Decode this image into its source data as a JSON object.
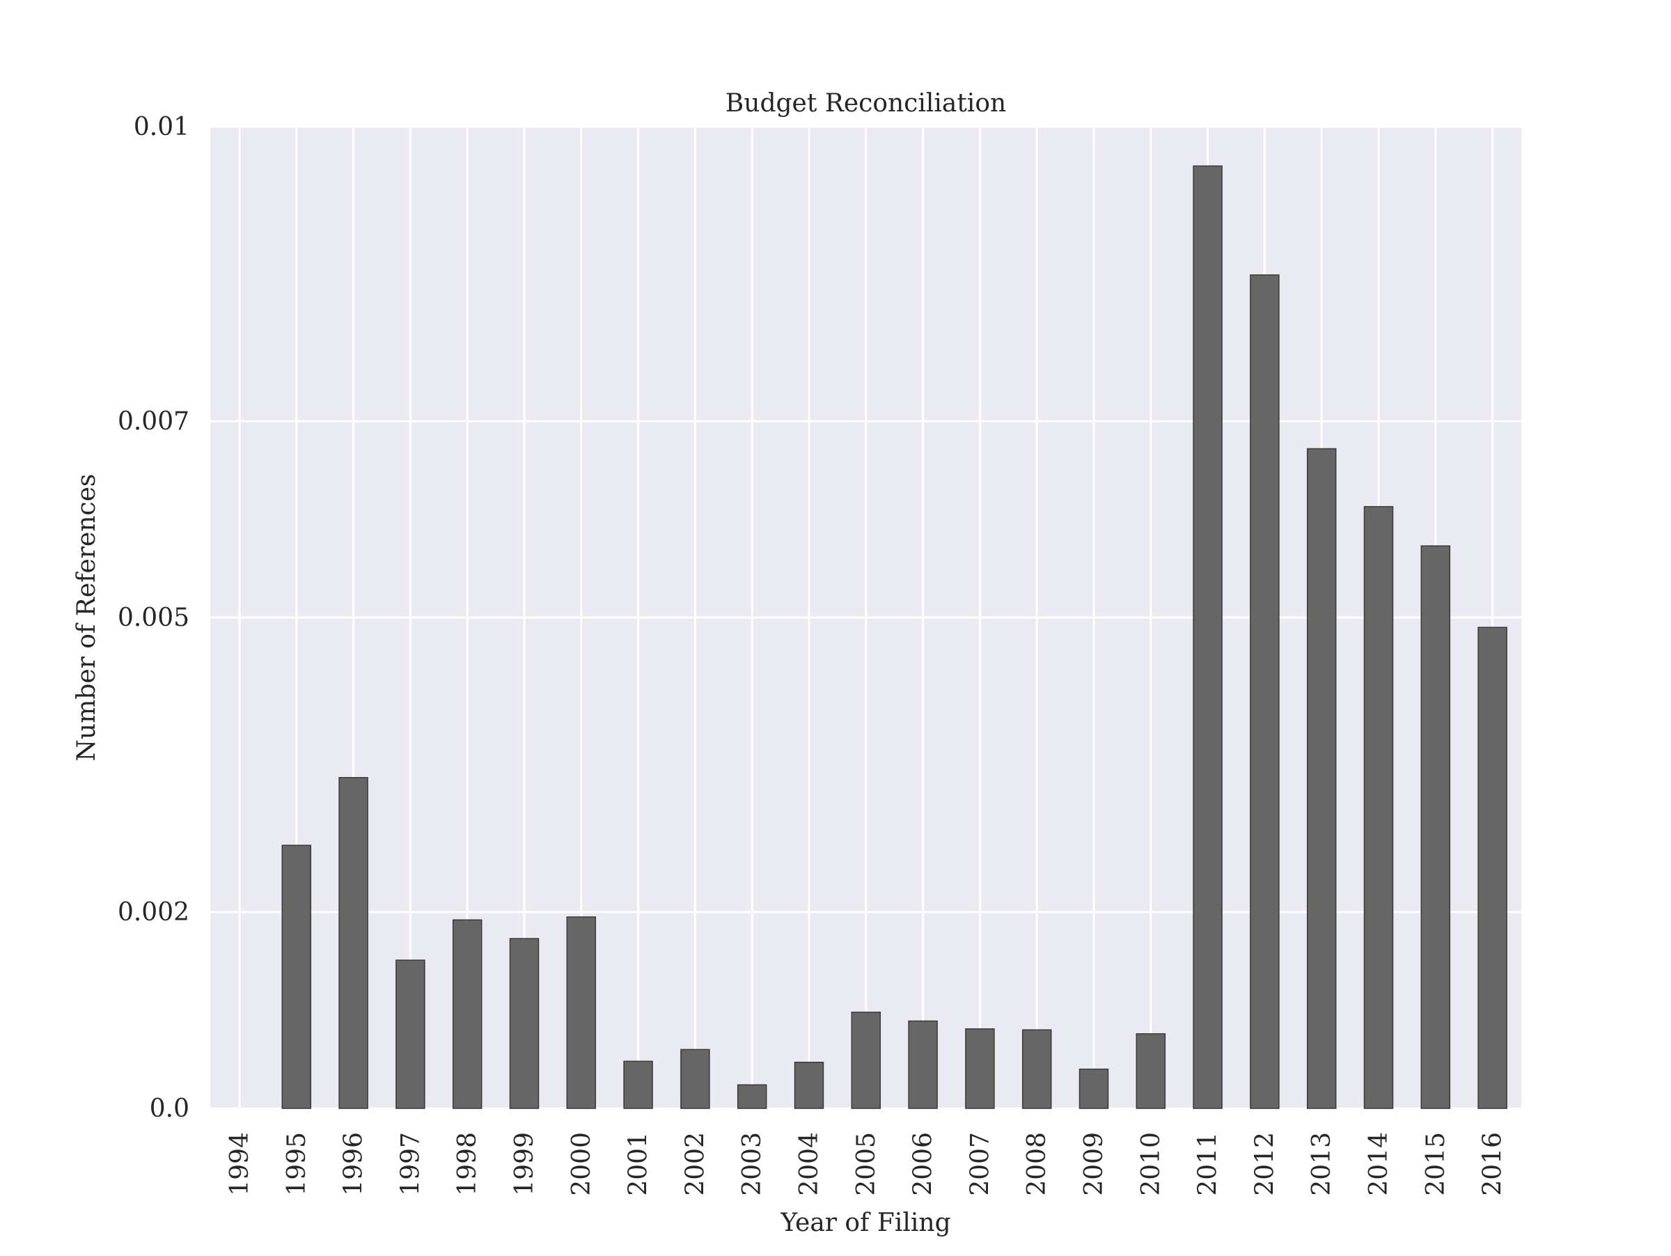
{
  "chart_data": {
    "type": "bar",
    "title": "Budget Reconciliation",
    "xlabel": "Year of Filing",
    "ylabel": "Number of References",
    "categories": [
      "1994",
      "1995",
      "1996",
      "1997",
      "1998",
      "1999",
      "2000",
      "2001",
      "2002",
      "2003",
      "2004",
      "2005",
      "2006",
      "2007",
      "2008",
      "2009",
      "2010",
      "2011",
      "2012",
      "2013",
      "2014",
      "2015",
      "2016"
    ],
    "values": [
      0.0,
      0.00268,
      0.00337,
      0.00151,
      0.00192,
      0.00173,
      0.00195,
      0.00048,
      0.0006,
      0.00024,
      0.00047,
      0.00098,
      0.00089,
      0.00081,
      0.0008,
      0.0004,
      0.00076,
      0.0096,
      0.00849,
      0.00672,
      0.00613,
      0.00573,
      0.0049
    ],
    "ylim": [
      0,
      0.01
    ],
    "yticks": [
      0.0,
      0.002,
      0.005,
      0.007,
      0.01
    ],
    "ytick_labels": [
      "0.0",
      "0.002",
      "0.005",
      "0.007",
      "0.01"
    ],
    "grid": true,
    "colors": {
      "bar": "#5a5a5a",
      "bar_edge": "#3a3a3a",
      "plot_background": "#eaeaf2",
      "grid": "#ffffff",
      "text": "#262626"
    }
  }
}
